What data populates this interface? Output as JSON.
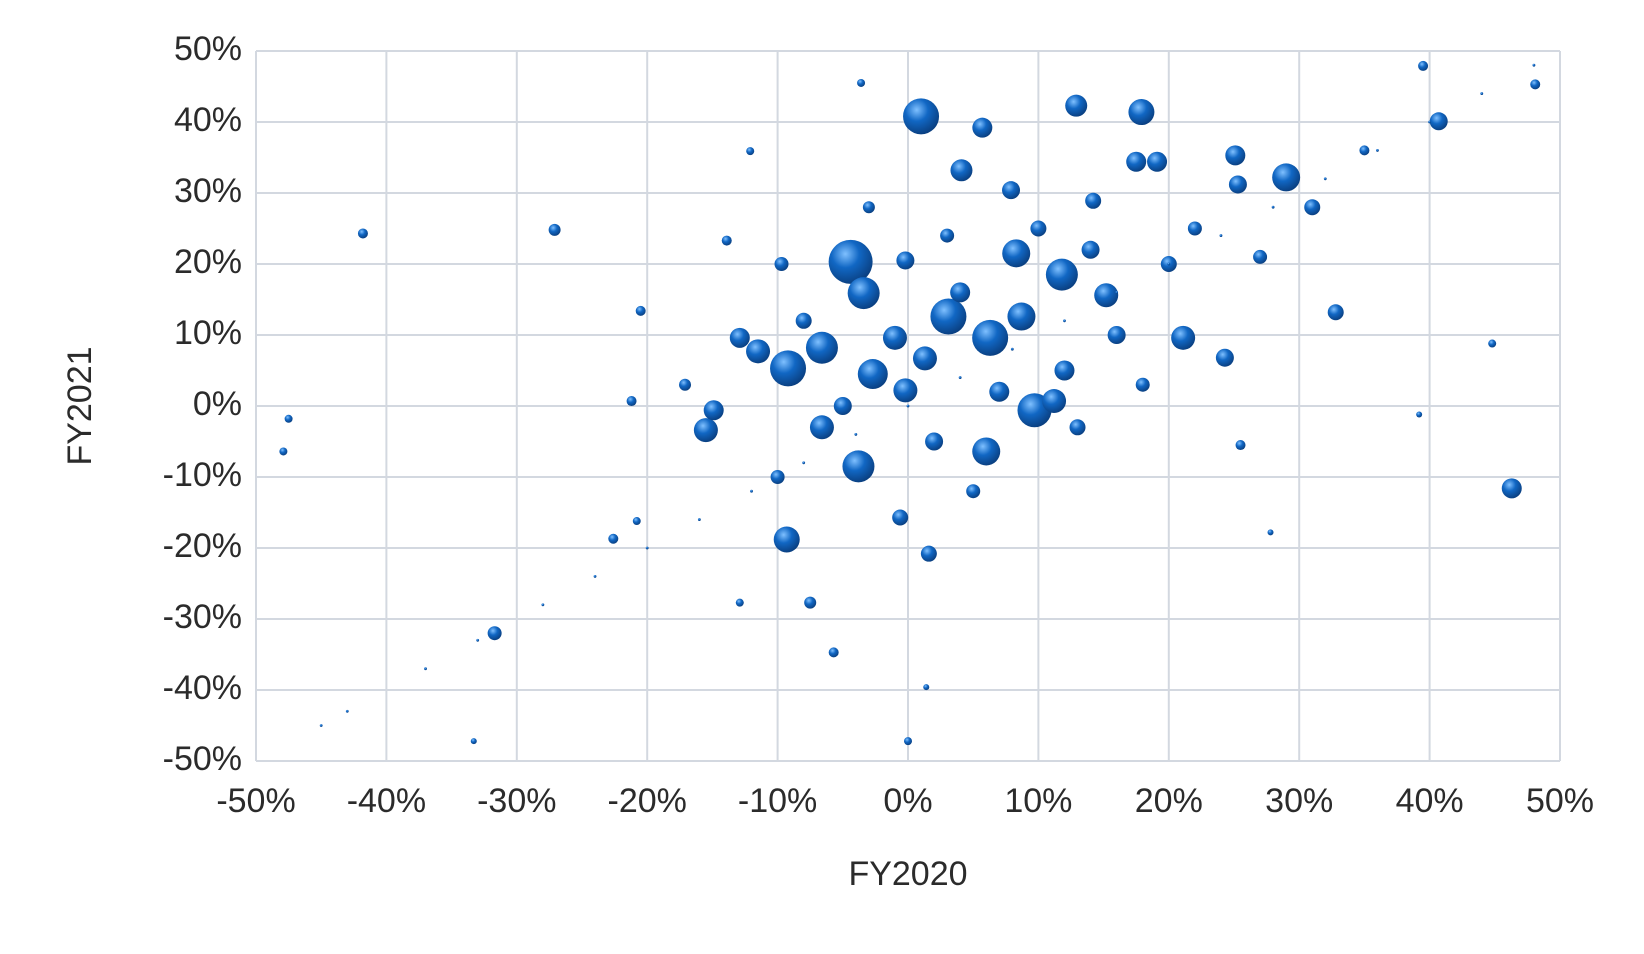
{
  "chart_data": {
    "type": "bubble",
    "x_label": "FY2020",
    "y_label": "FY2021",
    "color": "#1167c4",
    "grid": true,
    "xlim": [
      -50,
      50
    ],
    "xticks": [
      {
        "value": -50,
        "label": "-50%"
      },
      {
        "value": -40,
        "label": "-40%"
      },
      {
        "value": -30,
        "label": "-30%"
      },
      {
        "value": -20,
        "label": "-20%"
      },
      {
        "value": -10,
        "label": "-10%"
      },
      {
        "value": 0,
        "label": "0%"
      },
      {
        "value": 10,
        "label": "10%"
      },
      {
        "value": 20,
        "label": "20%"
      },
      {
        "value": 30,
        "label": "30%"
      },
      {
        "value": 40,
        "label": "40%"
      },
      {
        "value": 50,
        "label": "50%"
      }
    ],
    "ylim": [
      -50,
      50
    ],
    "yticks": [
      {
        "value": -50,
        "label": "-50%"
      },
      {
        "value": -40,
        "label": "-40%"
      },
      {
        "value": -30,
        "label": "-30%"
      },
      {
        "value": -20,
        "label": "-20%"
      },
      {
        "value": -10,
        "label": "-10%"
      },
      {
        "value": 0,
        "label": "0%"
      },
      {
        "value": 10,
        "label": "10%"
      },
      {
        "value": 20,
        "label": "20%"
      },
      {
        "value": 30,
        "label": "30%"
      },
      {
        "value": 40,
        "label": "40%"
      },
      {
        "value": 50,
        "label": "50%"
      }
    ],
    "x": [
      1.0,
      -4.4,
      -3.4,
      5.7,
      4.1,
      12.9,
      17.9,
      17.5,
      19.1,
      25.1,
      29.0,
      46.3,
      32.8,
      24.3,
      21.1,
      9.7,
      6.0,
      -9.3,
      1.6,
      -3.8,
      -9.2,
      -11.5,
      -15.5,
      -14.9,
      -12.9,
      -6.6,
      -2.7,
      -1.0,
      3.1,
      6.3,
      11.8,
      8.3,
      11.2,
      8.7,
      15.2,
      -0.2,
      1.3,
      -6.6,
      -31.7,
      -27.1,
      -41.8,
      -20.5,
      -0.6,
      -0.2,
      7.9,
      14.2,
      25.3,
      25.5,
      40.7,
      39.5,
      48.1,
      -47.9,
      -47.5,
      -33.3,
      0,
      1.4,
      -3.6,
      -12.1,
      44.8,
      39.2,
      27.8,
      -5.7,
      -7.5,
      -12.9,
      -22.6,
      -20.8,
      -17.1,
      -21.2,
      -9.7,
      -13.9,
      4,
      12,
      16,
      -5,
      2,
      7,
      -8,
      10,
      20,
      22,
      14,
      3,
      -3,
      18,
      5,
      -10,
      13,
      27,
      31,
      35,
      -45,
      -43,
      -37,
      -33,
      -28,
      -24,
      -20,
      -16,
      -12,
      -8,
      -4,
      0,
      4,
      8,
      12,
      16,
      20,
      24,
      28,
      32,
      36,
      40,
      44,
      48
    ],
    "y": [
      40.8,
      20.3,
      15.9,
      39.2,
      33.2,
      42.3,
      41.4,
      34.4,
      34.4,
      35.3,
      32.2,
      -11.6,
      13.2,
      6.8,
      9.6,
      -0.6,
      -6.4,
      -18.8,
      -20.8,
      -8.5,
      5.3,
      7.7,
      -3.4,
      -0.6,
      9.6,
      8.2,
      4.5,
      9.6,
      12.6,
      9.6,
      18.5,
      21.5,
      0.7,
      12.6,
      15.6,
      2.2,
      6.7,
      -3.0,
      -32.0,
      24.8,
      24.3,
      13.4,
      -15.7,
      20.5,
      30.4,
      28.9,
      31.2,
      -5.5,
      40.1,
      47.9,
      45.3,
      -6.4,
      -1.8,
      -47.2,
      -47.2,
      -39.6,
      45.5,
      35.9,
      8.8,
      -1.2,
      -17.8,
      -34.7,
      -27.7,
      -27.7,
      -18.7,
      -16.2,
      3.0,
      0.7,
      20.0,
      23.3,
      16,
      5,
      10,
      0,
      -5,
      2,
      12,
      25,
      20,
      25,
      22,
      24,
      28,
      3,
      -12,
      -10,
      -3,
      21,
      28,
      36,
      -45,
      -43,
      -37,
      -33,
      -28,
      -24,
      -20,
      -16,
      -12,
      -8,
      -4,
      0,
      4,
      8,
      12,
      16,
      20,
      24,
      28,
      32,
      36,
      40,
      44,
      48
    ],
    "sizes": [
      324,
      484,
      256,
      100,
      121,
      121,
      169,
      100,
      100,
      100,
      196,
      100,
      64,
      81,
      144,
      289,
      196,
      169,
      64,
      256,
      324,
      144,
      144,
      100,
      100,
      256,
      225,
      144,
      324,
      324,
      256,
      196,
      144,
      196,
      144,
      144,
      144,
      144,
      49,
      36,
      25,
      25,
      64,
      81,
      81,
      64,
      81,
      25,
      81,
      25,
      25,
      16,
      16,
      9,
      16,
      9,
      16,
      16,
      16,
      9,
      9,
      25,
      36,
      16,
      25,
      16,
      36,
      25,
      49,
      25,
      100,
      100,
      81,
      81,
      81,
      100,
      64,
      64,
      64,
      49,
      81,
      49,
      36,
      49,
      49,
      49,
      64,
      49,
      64,
      25,
      2,
      2,
      2,
      2,
      2,
      2,
      2,
      2,
      2,
      2,
      2,
      2,
      2,
      2,
      2,
      2,
      2,
      2,
      2,
      2,
      2,
      2,
      2,
      2
    ]
  }
}
